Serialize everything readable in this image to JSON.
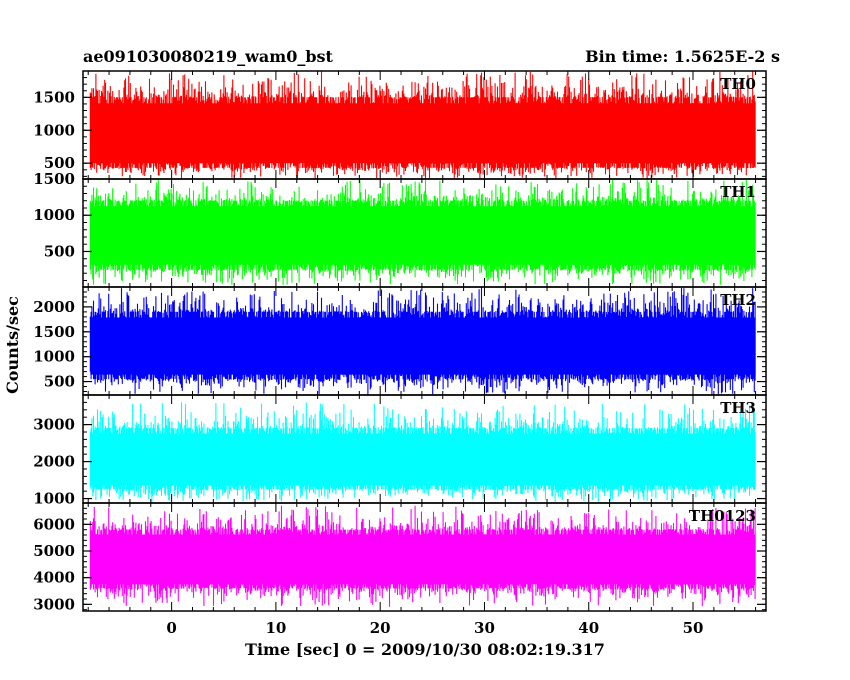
{
  "header": {
    "title": "ae091030080219_wam0_bst",
    "bin_time": "Bin time: 1.5625E-2 s"
  },
  "chart_data": {
    "type": "line",
    "title": "ae091030080219_wam0_bst",
    "xlabel": "Time [sec] 0 = 2009/10/30 08:02:19.317",
    "ylabel": "Counts/sec",
    "xlim": [
      -8.5,
      57
    ],
    "x_ticks": [
      0,
      10,
      20,
      30,
      40,
      50
    ],
    "x_data_range": [
      -7.8,
      56
    ],
    "grid": false,
    "panels": [
      {
        "name": "TH0",
        "color": "#ff0000",
        "ylim": [
          260,
          1900
        ],
        "y_ticks": [
          500,
          1000,
          1500
        ],
        "series": {
          "name": "TH0",
          "mean": 900,
          "low": 430,
          "high": 1500,
          "min": 260,
          "max": 1900
        }
      },
      {
        "name": "TH1",
        "color": "#00ff00",
        "ylim": [
          10,
          1500
        ],
        "y_ticks": [
          500,
          1000,
          1500
        ],
        "series": {
          "name": "TH1",
          "mean": 700,
          "low": 250,
          "high": 1200,
          "min": 40,
          "max": 1500
        }
      },
      {
        "name": "TH2",
        "color": "#0000ff",
        "ylim": [
          230,
          2400
        ],
        "y_ticks": [
          500,
          1000,
          1500,
          2000
        ],
        "series": {
          "name": "TH2",
          "mean": 1150,
          "low": 550,
          "high": 1900,
          "min": 230,
          "max": 2400
        }
      },
      {
        "name": "TH3",
        "color": "#00ffff",
        "ylim": [
          880,
          3800
        ],
        "y_ticks": [
          1000,
          2000,
          3000
        ],
        "series": {
          "name": "TH3",
          "mean": 1950,
          "low": 1250,
          "high": 2900,
          "min": 900,
          "max": 3600
        }
      },
      {
        "name": "TH0123",
        "color": "#ff00ff",
        "ylim": [
          2750,
          6800
        ],
        "y_ticks": [
          3000,
          4000,
          5000,
          6000
        ],
        "series": {
          "name": "TH0123",
          "mean": 4600,
          "low": 3600,
          "high": 5800,
          "min": 2900,
          "max": 6700
        }
      }
    ]
  }
}
